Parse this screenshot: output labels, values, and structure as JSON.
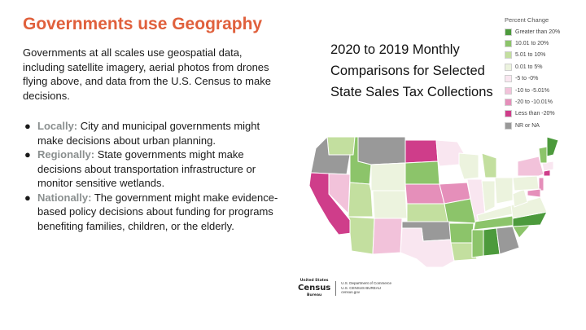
{
  "heading": "Governments use Geography",
  "intro": "Governments at all scales use geospatial data, including satellite imagery, aerial photos from drones flying above, and data from the U.S. Census to make decisions.",
  "bullets": [
    {
      "lead": "Locally:",
      "text": " City and municipal governments might make decisions about urban planning."
    },
    {
      "lead": "Regionally:",
      "text": " State governments might make decisions about transportation infrastructure or monitor sensitive wetlands."
    },
    {
      "lead": "Nationally:",
      "text": " The government might make evidence-based policy decisions about funding for programs benefiting families, children, or the elderly."
    }
  ],
  "bullet_glyph": "●",
  "map": {
    "title": "2020 to 2019 Monthly Comparisons for Selected State Sales Tax Collections",
    "legend_title": "Percent Change",
    "legend": [
      {
        "label": "Greater than 20%",
        "color": "#4c9a3c"
      },
      {
        "label": "10.01 to 20%",
        "color": "#8cc46a"
      },
      {
        "label": "5.01 to 10%",
        "color": "#c3df9f"
      },
      {
        "label": "0.01 to 5%",
        "color": "#ecf3de"
      },
      {
        "label": "-5 to -0%",
        "color": "#f9e6f0"
      },
      {
        "label": "-10 to -5.01%",
        "color": "#f2c2da"
      },
      {
        "label": "-20 to -10.01%",
        "color": "#e58fba"
      },
      {
        "label": "Less than -20%",
        "color": "#cf3d8a"
      },
      {
        "label": "NR or NA",
        "color": "#999999"
      }
    ]
  },
  "census": {
    "logo_top": "United States",
    "logo_main": "Census",
    "logo_bottom": "Bureau",
    "dept_line1": "U.S. Department of Commerce",
    "dept_line2": "U.S. CENSUS BUREAU",
    "dept_line3": "census.gov"
  }
}
